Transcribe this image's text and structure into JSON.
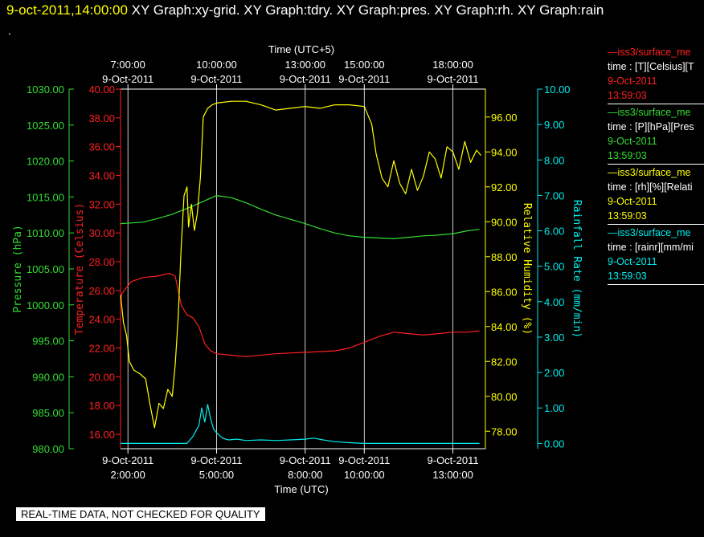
{
  "header": {
    "date": "9-oct-2011,14:00:00",
    "tabs": "XY Graph:xy-grid.  XY Graph:tdry.  XY Graph:pres.  XY Graph:rh.  XY Graph:rain"
  },
  "dot": ".",
  "banner": "REAL-TIME DATA, NOT CHECKED FOR QUALITY",
  "colors": {
    "temperature": "#ff2020",
    "pressure": "#33dd33",
    "humidity": "#ffff00",
    "rain": "#00eeee",
    "grid": "#ffffff"
  },
  "legend": [
    {
      "lines": [
        "—iss3/surface_me",
        "time : [T][Celsius][T",
        "9-Oct-2011",
        "13:59:03"
      ],
      "color": "#ff2020"
    },
    {
      "lines": [
        "—iss3/surface_me",
        "time : [P][hPa][Pres",
        "9-Oct-2011",
        "13:59:03"
      ],
      "color": "#33dd33"
    },
    {
      "lines": [
        "—iss3/surface_me",
        "time : [rh][%][Relati",
        "9-Oct-2011",
        "13:59:03"
      ],
      "color": "#ffff00"
    },
    {
      "lines": [
        "—iss3/surface_me",
        "time : [rainr][mm/mi",
        "9-Oct-2011",
        "13:59:03"
      ],
      "color": "#00eeee"
    }
  ],
  "chart_data": {
    "type": "line",
    "x_top_label": "Time (UTC+5)",
    "x_bottom_label": "Time (UTC)",
    "x_range_utc_hours": [
      1.75,
      14.1
    ],
    "bottom_ticks": [
      {
        "utc": 2,
        "line1": "9-Oct-2011",
        "line2": "2:00:00"
      },
      {
        "utc": 5,
        "line1": "9-Oct-2011",
        "line2": "5:00:00"
      },
      {
        "utc": 8,
        "line1": "9-Oct-2011",
        "line2": "8:00:00"
      },
      {
        "utc": 10,
        "line1": "9-Oct-2011",
        "line2": "10:00:00"
      },
      {
        "utc": 13,
        "line1": "9-Oct-2011",
        "line2": "13:00:00"
      }
    ],
    "top_ticks": [
      {
        "utc": 2,
        "line1": "7:00:00",
        "line2": "9-Oct-2011"
      },
      {
        "utc": 5,
        "line1": "10:00:00",
        "line2": "9-Oct-2011"
      },
      {
        "utc": 8,
        "line1": "13:00:00",
        "line2": "9-Oct-2011"
      },
      {
        "utc": 10,
        "line1": "15:00:00",
        "line2": "9-Oct-2011"
      },
      {
        "utc": 13,
        "line1": "18:00:00",
        "line2": "9-Oct-2011"
      }
    ],
    "axes": {
      "pressure": {
        "label": "Pressure (hPa)",
        "range": [
          980,
          1030
        ],
        "ticks": [
          "980.00",
          "985.00",
          "990.00",
          "995.00",
          "1000.00",
          "1005.00",
          "1010.00",
          "1015.00",
          "1020.00",
          "1025.00",
          "1030.00"
        ]
      },
      "temperature": {
        "label": "Temperature (Celsius)",
        "range": [
          15,
          40
        ],
        "ticks": [
          "16.00",
          "18.00",
          "20.00",
          "22.00",
          "24.00",
          "26.00",
          "28.00",
          "30.00",
          "32.00",
          "34.00",
          "36.00",
          "38.00",
          "40.00"
        ]
      },
      "humidity": {
        "label": "Relative Humidity (%)",
        "range": [
          77,
          97.6
        ],
        "ticks": [
          "78.00",
          "80.00",
          "82.00",
          "84.00",
          "86.00",
          "88.00",
          "90.00",
          "92.00",
          "94.00",
          "96.00"
        ]
      },
      "rain": {
        "label": "Rainfall Rate (mm/min)",
        "range": [
          -0.15,
          10
        ],
        "ticks": [
          "0.00",
          "1.00",
          "2.00",
          "3.00",
          "4.00",
          "5.00",
          "6.00",
          "7.00",
          "8.00",
          "9.00",
          "10.00"
        ]
      }
    },
    "series": [
      {
        "name": "iss3/surface_me time : [T][Celsius][T",
        "axis": "temperature",
        "color": "#ff2020",
        "x": [
          1.75,
          1.8,
          1.95,
          2.1,
          2.5,
          3.0,
          3.4,
          3.6,
          3.8,
          4.0,
          4.2,
          4.4,
          4.6,
          4.8,
          5.0,
          5.5,
          6.0,
          7.0,
          8.0,
          9.0,
          9.5,
          10.0,
          10.5,
          11.0,
          11.5,
          12.0,
          12.5,
          13.0,
          13.5,
          13.9
        ],
        "y": [
          25.2,
          25.8,
          26.2,
          26.6,
          26.9,
          27.0,
          27.2,
          27.0,
          25.0,
          24.3,
          24.1,
          23.5,
          22.3,
          21.8,
          21.6,
          21.5,
          21.4,
          21.6,
          21.7,
          21.8,
          22.0,
          22.4,
          22.8,
          23.1,
          23.0,
          22.9,
          23.0,
          23.1,
          23.1,
          23.2
        ]
      },
      {
        "name": "iss3/surface_me time : [P][hPa][Pres",
        "axis": "pressure",
        "color": "#33dd33",
        "x": [
          1.75,
          2.5,
          3.0,
          3.5,
          4.0,
          4.5,
          5.0,
          5.5,
          6.0,
          6.5,
          7.0,
          7.5,
          8.0,
          8.5,
          9.0,
          9.5,
          10.0,
          10.5,
          11.0,
          11.5,
          12.0,
          12.5,
          13.0,
          13.5,
          13.9
        ],
        "y": [
          1011.3,
          1011.5,
          1012.0,
          1012.6,
          1013.4,
          1014.3,
          1015.2,
          1014.9,
          1014.2,
          1013.3,
          1012.5,
          1011.9,
          1011.3,
          1010.6,
          1010.0,
          1009.6,
          1009.4,
          1009.3,
          1009.2,
          1009.4,
          1009.6,
          1009.7,
          1009.9,
          1010.3,
          1010.5
        ]
      },
      {
        "name": "iss3/surface_me time : [rh][%][Relati",
        "axis": "humidity",
        "color": "#ffff00",
        "x": [
          1.75,
          1.85,
          1.95,
          2.05,
          2.2,
          2.4,
          2.6,
          2.75,
          2.9,
          3.05,
          3.2,
          3.35,
          3.5,
          3.6,
          3.7,
          3.8,
          3.9,
          4.0,
          4.05,
          4.15,
          4.25,
          4.35,
          4.45,
          4.55,
          4.7,
          4.85,
          5.0,
          5.5,
          6.0,
          6.5,
          7.0,
          7.5,
          8.0,
          8.5,
          9.0,
          9.5,
          10.0,
          10.25,
          10.4,
          10.6,
          10.8,
          11.0,
          11.2,
          11.4,
          11.6,
          11.8,
          12.0,
          12.2,
          12.4,
          12.6,
          12.8,
          13.0,
          13.2,
          13.4,
          13.6,
          13.8,
          13.95
        ],
        "y": [
          85.8,
          84.2,
          83.5,
          82.0,
          81.5,
          81.3,
          81.0,
          79.5,
          78.2,
          79.6,
          79.3,
          80.4,
          80.0,
          81.8,
          84.5,
          88.5,
          91.5,
          92.0,
          89.7,
          91.0,
          89.5,
          90.5,
          92.5,
          96.0,
          96.5,
          96.7,
          96.8,
          96.9,
          96.9,
          96.7,
          96.4,
          96.5,
          96.6,
          96.5,
          96.7,
          96.7,
          96.6,
          95.6,
          93.9,
          92.5,
          92.0,
          93.5,
          92.2,
          91.6,
          93.0,
          91.8,
          92.6,
          94.0,
          93.6,
          92.5,
          94.3,
          94.0,
          93.0,
          94.6,
          93.4,
          94.1,
          93.8
        ]
      },
      {
        "name": "iss3/surface_me time : [rainr][mm/mi",
        "axis": "rain",
        "color": "#00eeee",
        "x": [
          1.75,
          4.0,
          4.2,
          4.4,
          4.5,
          4.6,
          4.7,
          4.8,
          4.9,
          5.0,
          5.2,
          5.4,
          5.7,
          6.0,
          6.5,
          7.0,
          7.5,
          8.0,
          8.3,
          8.6,
          9.0,
          9.5,
          10.0,
          10.5,
          11.0,
          12.0,
          13.0,
          13.9
        ],
        "y": [
          0.0,
          0.0,
          0.2,
          0.5,
          1.0,
          0.6,
          1.1,
          0.7,
          0.4,
          0.3,
          0.15,
          0.1,
          0.12,
          0.08,
          0.1,
          0.08,
          0.1,
          0.12,
          0.15,
          0.1,
          0.05,
          0.02,
          0.0,
          0.0,
          0.0,
          0.0,
          0.0,
          0.0
        ]
      }
    ],
    "grid": true
  }
}
